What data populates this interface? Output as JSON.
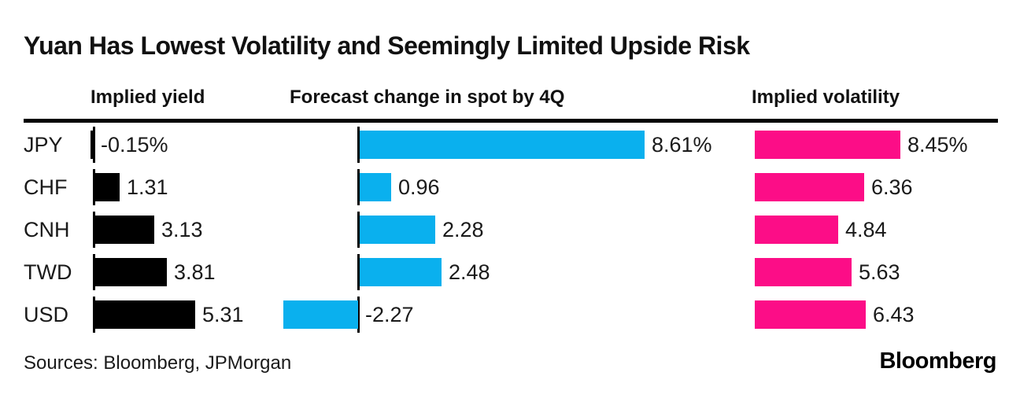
{
  "title": "Yuan Has Lowest Volatility and Seemingly Limited Upside Risk",
  "columns": [
    {
      "label": "Implied yield"
    },
    {
      "label": "Forecast change in spot by 4Q"
    },
    {
      "label": "Implied volatility"
    }
  ],
  "chart_data": {
    "type": "bar",
    "orientation": "horizontal",
    "title": "Yuan Has Lowest Volatility and Seemingly Limited Upside Risk",
    "categories": [
      "JPY",
      "CHF",
      "CNH",
      "TWD",
      "USD"
    ],
    "series": [
      {
        "name": "Implied yield",
        "key": "implied-yield",
        "color": "#000000",
        "values": [
          -0.15,
          1.31,
          3.13,
          3.81,
          5.31
        ],
        "labels": [
          "-0.15%",
          "1.31",
          "3.13",
          "3.81",
          "5.31"
        ],
        "axis_baseline_tick": true
      },
      {
        "name": "Forecast change in spot by 4Q",
        "key": "forecast-change",
        "color": "#0ab0ee",
        "values": [
          8.61,
          0.96,
          2.28,
          2.48,
          -2.27
        ],
        "labels": [
          "8.61%",
          "0.96",
          "2.28",
          "2.48",
          "-2.27"
        ],
        "axis_baseline_tick": true
      },
      {
        "name": "Implied volatility",
        "key": "implied-volatility",
        "color": "#fc0d87",
        "values": [
          8.45,
          6.36,
          4.84,
          5.63,
          6.43
        ],
        "labels": [
          "8.45%",
          "6.36",
          "4.84",
          "5.63",
          "6.43"
        ],
        "axis_baseline_tick": false
      }
    ],
    "legend": "none",
    "grid": "off",
    "value_labels_position": "right-of-bar"
  },
  "footer": {
    "sources": "Sources: Bloomberg, JPMorgan",
    "logo": "Bloomberg"
  },
  "colors": {
    "background": "#ffffff",
    "text": "#1a1a1a",
    "rule": "#000000",
    "yield_bar": "#000000",
    "forecast_bar": "#0ab0ee",
    "volatility_bar": "#fc0d87"
  }
}
